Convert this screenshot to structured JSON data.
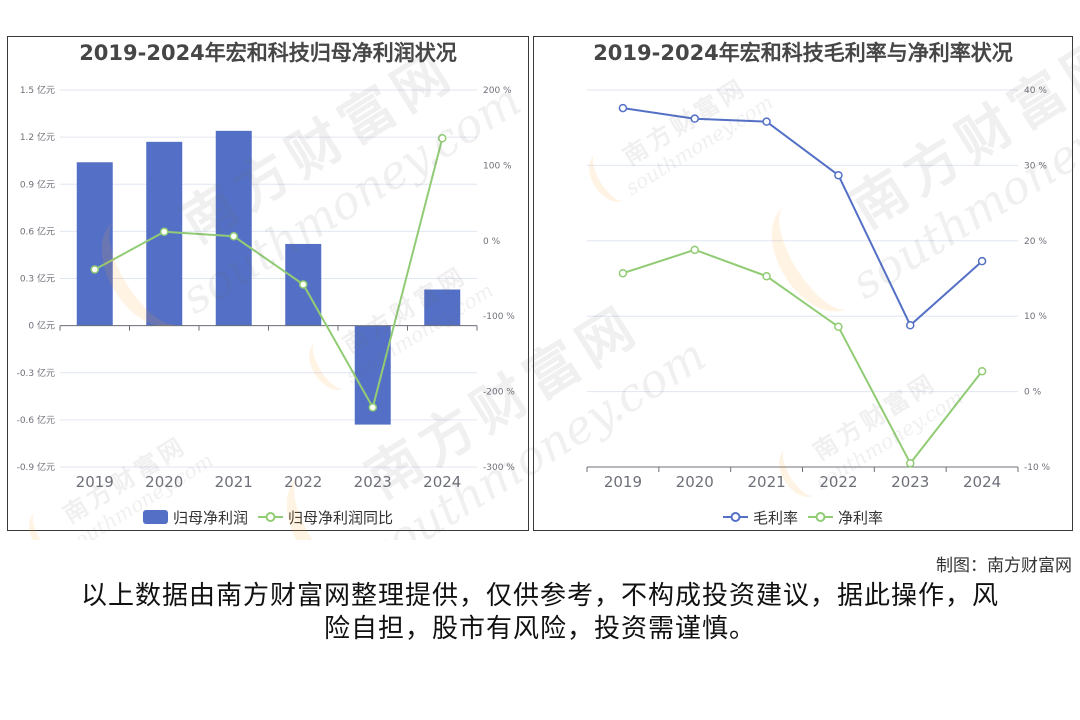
{
  "watermark": {
    "brand": "南方财富网",
    "site": "southmoney.com"
  },
  "credit": "制图：南方财富网",
  "disclaimer": "以上数据由南方财富网整理提供，仅供参考，不构成投资建议，据此操作，风险自担，股市有风险，投资需谨慎。",
  "colors": {
    "axis": "#6e7079",
    "grid": "#e0e6f1"
  },
  "chart_data": [
    {
      "type": "bar",
      "title": "2019-2024年宏和科技归母净利润状况",
      "categories": [
        "2019",
        "2020",
        "2021",
        "2022",
        "2023",
        "2024"
      ],
      "series": [
        {
          "name": "归母净利润",
          "type": "bar",
          "axis": "left",
          "color": "#5470c6",
          "values": [
            1.04,
            1.17,
            1.24,
            0.52,
            -0.63,
            0.23
          ]
        },
        {
          "name": "归母净利润同比",
          "type": "line",
          "axis": "right",
          "color": "#91cc75",
          "values": [
            -38,
            12,
            6,
            -58,
            -221,
            136
          ]
        }
      ],
      "y_left": {
        "ylim": [
          -0.9,
          1.5
        ],
        "ticks": [
          1.5,
          1.2,
          0.9,
          0.6,
          0.3,
          0,
          -0.3,
          -0.6,
          -0.9
        ],
        "tick_labels": [
          "1.5 亿元",
          "1.2 亿元",
          "0.9 亿元",
          "0.6 亿元",
          "0.3 亿元",
          "0 亿元",
          "-0.3 亿元",
          "-0.6 亿元",
          "-0.9 亿元"
        ]
      },
      "y_right": {
        "ylim": [
          -300,
          200
        ],
        "ticks": [
          200,
          100,
          0,
          -100,
          -200,
          -300
        ],
        "tick_labels": [
          "200 %",
          "100 %",
          "0 %",
          "-100 %",
          "-200 %",
          "-300 %"
        ]
      },
      "grid": true,
      "legend": "bottom"
    },
    {
      "type": "line",
      "title": "2019-2024年宏和科技毛利率与净利率状况",
      "categories": [
        "2019",
        "2020",
        "2021",
        "2022",
        "2023",
        "2024"
      ],
      "series": [
        {
          "name": "毛利率",
          "type": "line",
          "axis": "right",
          "color": "#5470c6",
          "values": [
            37.6,
            36.2,
            35.8,
            28.7,
            8.8,
            17.3
          ]
        },
        {
          "name": "净利率",
          "type": "line",
          "axis": "right",
          "color": "#91cc75",
          "values": [
            15.7,
            18.8,
            15.3,
            8.6,
            -9.5,
            2.7
          ]
        }
      ],
      "y_right": {
        "ylim": [
          -10,
          40
        ],
        "ticks": [
          40,
          30,
          20,
          10,
          0,
          -10
        ],
        "tick_labels": [
          "40 %",
          "30 %",
          "20 %",
          "10 %",
          "0 %",
          "-10 %"
        ]
      },
      "grid": true,
      "legend": "bottom"
    }
  ]
}
